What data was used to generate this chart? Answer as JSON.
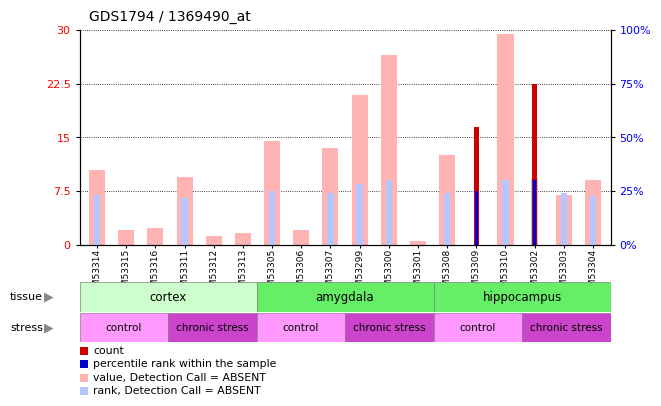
{
  "title": "GDS1794 / 1369490_at",
  "samples": [
    "GSM53314",
    "GSM53315",
    "GSM53316",
    "GSM53311",
    "GSM53312",
    "GSM53313",
    "GSM53305",
    "GSM53306",
    "GSM53307",
    "GSM53299",
    "GSM53300",
    "GSM53301",
    "GSM53308",
    "GSM53309",
    "GSM53310",
    "GSM53302",
    "GSM53303",
    "GSM53304"
  ],
  "pink_value": [
    10.5,
    2.0,
    2.3,
    9.5,
    1.2,
    1.7,
    14.5,
    2.0,
    13.5,
    21.0,
    26.5,
    0.5,
    12.5,
    0.0,
    29.5,
    0.0,
    7.0,
    9.0
  ],
  "light_blue_rank": [
    7.0,
    0.0,
    0.0,
    6.5,
    0.0,
    0.0,
    7.5,
    0.0,
    7.2,
    8.5,
    9.0,
    0.0,
    7.2,
    0.0,
    9.0,
    9.2,
    7.2,
    6.8
  ],
  "red_count": [
    0.0,
    0.0,
    0.0,
    0.0,
    0.0,
    0.0,
    0.0,
    0.0,
    0.0,
    0.0,
    0.0,
    0.0,
    0.0,
    16.5,
    0.0,
    22.5,
    0.0,
    0.0
  ],
  "blue_percentile": [
    0.0,
    0.0,
    0.0,
    0.0,
    0.0,
    0.0,
    0.0,
    0.0,
    0.0,
    0.0,
    0.0,
    0.0,
    0.0,
    7.5,
    0.0,
    9.0,
    0.0,
    0.0
  ],
  "tissue_groups": [
    {
      "label": "cortex",
      "start": 0,
      "end": 6,
      "color": "#ccffcc"
    },
    {
      "label": "amygdala",
      "start": 6,
      "end": 12,
      "color": "#66ee66"
    },
    {
      "label": "hippocampus",
      "start": 12,
      "end": 18,
      "color": "#66ee66"
    }
  ],
  "stress_groups": [
    {
      "label": "control",
      "start": 0,
      "end": 3,
      "color": "#ff99ff"
    },
    {
      "label": "chronic stress",
      "start": 3,
      "end": 6,
      "color": "#cc44cc"
    },
    {
      "label": "control",
      "start": 6,
      "end": 9,
      "color": "#ff99ff"
    },
    {
      "label": "chronic stress",
      "start": 9,
      "end": 12,
      "color": "#cc44cc"
    },
    {
      "label": "control",
      "start": 12,
      "end": 15,
      "color": "#ff99ff"
    },
    {
      "label": "chronic stress",
      "start": 15,
      "end": 18,
      "color": "#cc44cc"
    }
  ],
  "ylim_left": [
    0,
    30
  ],
  "ylim_right": [
    0,
    100
  ],
  "yticks_left": [
    0,
    7.5,
    15,
    22.5,
    30
  ],
  "yticks_right": [
    0,
    25,
    50,
    75,
    100
  ],
  "pink_color": "#ffb3b3",
  "light_blue_color": "#b3c6ff",
  "red_color": "#cc0000",
  "blue_color": "#0000cc",
  "legend_items": [
    {
      "color": "#cc0000",
      "label": "count"
    },
    {
      "color": "#0000cc",
      "label": "percentile rank within the sample"
    },
    {
      "color": "#ffb3b3",
      "label": "value, Detection Call = ABSENT"
    },
    {
      "color": "#b3c6ff",
      "label": "rank, Detection Call = ABSENT"
    }
  ]
}
